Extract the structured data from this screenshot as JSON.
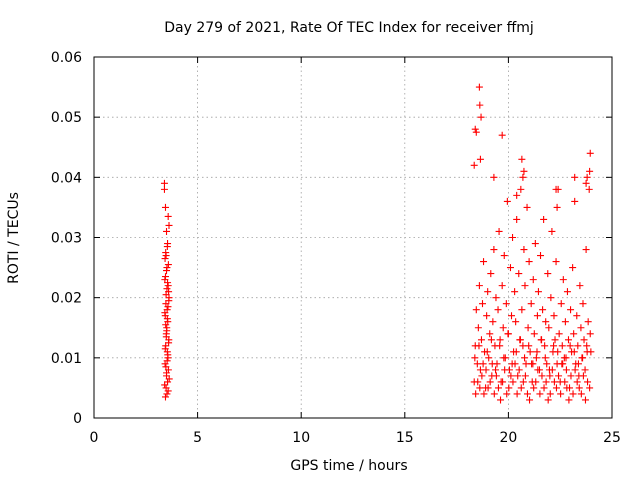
{
  "chart_data": {
    "type": "scatter",
    "title": "Day 279 of 2021, Rate Of TEC Index for receiver ffmj",
    "xlabel": "GPS time / hours",
    "ylabel": "ROTI / TECUs",
    "xlim": [
      0,
      25
    ],
    "ylim": [
      0,
      0.06
    ],
    "xticks": [
      0,
      5,
      10,
      15,
      20,
      25
    ],
    "yticks": [
      0,
      0.01,
      0.02,
      0.03,
      0.04,
      0.05,
      0.06
    ],
    "xtick_labels": [
      "0",
      "5",
      "10",
      "15",
      "20",
      "25"
    ],
    "ytick_labels": [
      "0",
      "0.01",
      "0.02",
      "0.03",
      "0.04",
      "0.05",
      "0.06"
    ],
    "grid": true,
    "marker": "+",
    "color": "#ff0000",
    "series": [
      {
        "name": "ROTI",
        "x": [
          3.4,
          3.45,
          3.5,
          3.55,
          3.48,
          3.52,
          3.42,
          3.58,
          3.6,
          3.62,
          3.47,
          3.53,
          3.44,
          3.56,
          3.51,
          3.49,
          3.61,
          3.46,
          3.54,
          3.57,
          3.43,
          3.59,
          3.5,
          3.55,
          3.48,
          3.52,
          3.45,
          3.58,
          3.41,
          3.63,
          3.5,
          3.47,
          3.53,
          3.56,
          3.44,
          3.6,
          3.49,
          3.51,
          3.46,
          3.54,
          3.42,
          3.57,
          3.61,
          3.48,
          3.52,
          3.55,
          3.45,
          3.5,
          3.59,
          3.43,
          3.46,
          3.54,
          3.62,
          3.4,
          3.58,
          18.35,
          18.4,
          18.45,
          18.5,
          18.55,
          18.6,
          18.65,
          18.7,
          18.75,
          18.8,
          18.85,
          18.9,
          18.95,
          19.0,
          19.05,
          19.1,
          19.15,
          19.2,
          19.25,
          19.3,
          19.35,
          19.4,
          19.45,
          19.5,
          19.55,
          19.6,
          19.65,
          19.7,
          19.75,
          19.8,
          19.85,
          19.9,
          19.95,
          20.0,
          20.05,
          20.1,
          20.15,
          20.2,
          20.25,
          20.3,
          20.35,
          20.4,
          20.45,
          20.5,
          20.55,
          20.6,
          20.65,
          20.7,
          20.75,
          20.8,
          20.85,
          20.9,
          20.95,
          21.0,
          21.05,
          21.1,
          21.15,
          21.2,
          21.25,
          21.3,
          21.35,
          21.4,
          21.45,
          21.5,
          21.55,
          21.6,
          21.65,
          21.7,
          21.75,
          21.8,
          21.85,
          21.9,
          21.95,
          22.0,
          22.05,
          22.1,
          22.15,
          22.2,
          22.25,
          22.3,
          22.35,
          22.4,
          22.45,
          22.5,
          22.55,
          22.6,
          22.65,
          22.7,
          22.75,
          22.8,
          22.85,
          22.9,
          22.95,
          23.0,
          23.05,
          23.1,
          23.15,
          23.2,
          23.25,
          23.3,
          23.35,
          23.4,
          23.45,
          23.5,
          23.55,
          23.6,
          23.65,
          23.7,
          23.75,
          23.8,
          23.85,
          23.9,
          23.95,
          18.42,
          18.52,
          18.62,
          18.72,
          18.82,
          18.92,
          19.02,
          19.12,
          19.22,
          19.32,
          19.42,
          19.52,
          19.62,
          19.72,
          19.82,
          19.92,
          20.02,
          20.12,
          20.22,
          20.32,
          20.42,
          20.52,
          20.62,
          20.72,
          20.82,
          20.92,
          21.02,
          21.12,
          21.22,
          21.32,
          21.42,
          21.52,
          21.62,
          21.72,
          21.82,
          21.92,
          22.02,
          22.12,
          22.22,
          22.32,
          22.42,
          22.52,
          22.62,
          22.72,
          22.82,
          22.92,
          23.02,
          23.12,
          23.22,
          23.32,
          23.42,
          23.52,
          23.62,
          23.72,
          23.82,
          23.92,
          18.38,
          18.58,
          18.78,
          18.98,
          19.18,
          19.38,
          19.58,
          19.78,
          19.98,
          20.18,
          20.38,
          20.58,
          20.78,
          20.98,
          21.18,
          21.38,
          21.58,
          21.78,
          21.98,
          22.18,
          22.38,
          22.58,
          22.78,
          22.98,
          23.18,
          23.38,
          23.58,
          23.78,
          23.98,
          18.35,
          18.4,
          18.45,
          18.6,
          18.62,
          18.65,
          19.7,
          20.65,
          20.7,
          20.75,
          22.3,
          22.35,
          23.2,
          23.75,
          23.8,
          23.95,
          23.92,
          18.68,
          19.3,
          20.4
        ],
        "y": [
          0.038,
          0.035,
          0.031,
          0.029,
          0.027,
          0.025,
          0.023,
          0.022,
          0.021,
          0.02,
          0.019,
          0.018,
          0.017,
          0.016,
          0.015,
          0.014,
          0.013,
          0.012,
          0.011,
          0.01,
          0.009,
          0.008,
          0.007,
          0.006,
          0.005,
          0.004,
          0.0035,
          0.0045,
          0.0055,
          0.0065,
          0.0075,
          0.0085,
          0.0095,
          0.0105,
          0.0115,
          0.0125,
          0.0135,
          0.0145,
          0.0155,
          0.0165,
          0.0175,
          0.0185,
          0.0195,
          0.0205,
          0.0215,
          0.0225,
          0.0235,
          0.0245,
          0.0255,
          0.0265,
          0.0275,
          0.0285,
          0.032,
          0.039,
          0.0335,
          0.006,
          0.012,
          0.018,
          0.009,
          0.015,
          0.022,
          0.008,
          0.013,
          0.019,
          0.026,
          0.011,
          0.005,
          0.017,
          0.021,
          0.01,
          0.014,
          0.024,
          0.007,
          0.016,
          0.028,
          0.012,
          0.02,
          0.009,
          0.018,
          0.031,
          0.013,
          0.006,
          0.022,
          0.015,
          0.027,
          0.01,
          0.019,
          0.036,
          0.014,
          0.008,
          0.025,
          0.017,
          0.03,
          0.011,
          0.021,
          0.016,
          0.033,
          0.007,
          0.024,
          0.013,
          0.038,
          0.018,
          0.012,
          0.028,
          0.022,
          0.009,
          0.035,
          0.015,
          0.026,
          0.011,
          0.019,
          0.006,
          0.023,
          0.014,
          0.029,
          0.01,
          0.017,
          0.021,
          0.008,
          0.027,
          0.013,
          0.018,
          0.033,
          0.012,
          0.016,
          0.009,
          0.024,
          0.015,
          0.007,
          0.02,
          0.031,
          0.011,
          0.017,
          0.013,
          0.026,
          0.009,
          0.038,
          0.014,
          0.006,
          0.019,
          0.012,
          0.023,
          0.01,
          0.016,
          0.008,
          0.021,
          0.013,
          0.005,
          0.018,
          0.011,
          0.025,
          0.014,
          0.036,
          0.009,
          0.017,
          0.012,
          0.007,
          0.022,
          0.015,
          0.01,
          0.019,
          0.013,
          0.008,
          0.028,
          0.011,
          0.016,
          0.038,
          0.014,
          0.004,
          0.006,
          0.005,
          0.007,
          0.004,
          0.008,
          0.005,
          0.006,
          0.009,
          0.004,
          0.007,
          0.005,
          0.003,
          0.006,
          0.008,
          0.004,
          0.005,
          0.007,
          0.006,
          0.009,
          0.004,
          0.008,
          0.005,
          0.006,
          0.007,
          0.004,
          0.003,
          0.009,
          0.005,
          0.006,
          0.008,
          0.004,
          0.007,
          0.005,
          0.006,
          0.003,
          0.004,
          0.008,
          0.006,
          0.005,
          0.007,
          0.004,
          0.009,
          0.006,
          0.005,
          0.003,
          0.007,
          0.004,
          0.008,
          0.006,
          0.005,
          0.004,
          0.007,
          0.003,
          0.006,
          0.005,
          0.01,
          0.012,
          0.009,
          0.011,
          0.013,
          0.008,
          0.012,
          0.01,
          0.014,
          0.009,
          0.011,
          0.013,
          0.01,
          0.012,
          0.009,
          0.011,
          0.013,
          0.01,
          0.008,
          0.012,
          0.011,
          0.009,
          0.01,
          0.012,
          0.011,
          0.009,
          0.01,
          0.012,
          0.011,
          0.042,
          0.048,
          0.0475,
          0.055,
          0.052,
          0.043,
          0.047,
          0.043,
          0.04,
          0.041,
          0.038,
          0.035,
          0.04,
          0.039,
          0.04,
          0.044,
          0.041,
          0.05,
          0.04,
          0.037
        ]
      }
    ]
  }
}
